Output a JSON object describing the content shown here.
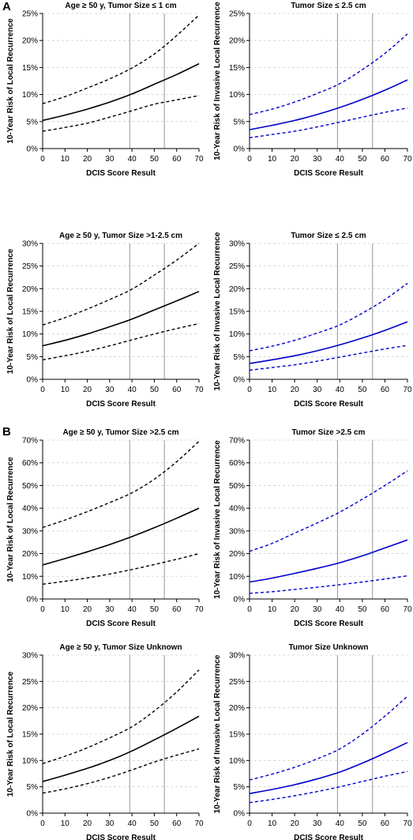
{
  "sections": [
    {
      "label": "A"
    },
    {
      "label": "B"
    }
  ],
  "chart_data": [
    {
      "type": "line",
      "title": "Age ≥ 50 y, Tumor Size ≤ 1 cm",
      "xlabel": "DCIS Score Result",
      "ylabel": "10-Year Risk of Local Recurrence",
      "xlim": [
        0,
        70
      ],
      "ylim": [
        0,
        25
      ],
      "xticks": [
        0,
        10,
        20,
        30,
        40,
        50,
        60,
        70
      ],
      "yticks": [
        0,
        5,
        10,
        15,
        20,
        25
      ],
      "ytick_format": "%",
      "vlines": [
        39,
        54.5
      ],
      "grid": "horizontal dashed",
      "color": "#000000",
      "x": [
        0,
        10,
        20,
        30,
        40,
        50,
        60,
        70
      ],
      "series": [
        {
          "role": "estimate",
          "style": "solid",
          "values": [
            5.2,
            6.2,
            7.3,
            8.6,
            10.1,
            11.9,
            13.7,
            15.7
          ]
        },
        {
          "role": "upper",
          "style": "dashed",
          "values": [
            8.3,
            9.6,
            11.2,
            12.9,
            14.9,
            17.5,
            20.9,
            24.7
          ]
        },
        {
          "role": "lower",
          "style": "dashed",
          "values": [
            3.2,
            3.9,
            4.7,
            5.8,
            7.0,
            8.2,
            9.0,
            9.8
          ]
        }
      ]
    },
    {
      "type": "line",
      "title": "Tumor Size ≤ 2.5 cm",
      "xlabel": "DCIS Score Result",
      "ylabel": "10-Year Risk of Invasive Local Recurrence",
      "xlim": [
        0,
        70
      ],
      "ylim": [
        0,
        25
      ],
      "xticks": [
        0,
        10,
        20,
        30,
        40,
        50,
        60,
        70
      ],
      "yticks": [
        0,
        5,
        10,
        15,
        20,
        25
      ],
      "ytick_format": "%",
      "vlines": [
        39,
        54.5
      ],
      "grid": "horizontal dashed",
      "color": "#0000cc",
      "x": [
        0,
        10,
        20,
        30,
        40,
        50,
        60,
        70
      ],
      "series": [
        {
          "role": "estimate",
          "style": "solid",
          "values": [
            3.5,
            4.3,
            5.2,
            6.3,
            7.6,
            9.1,
            10.8,
            12.7
          ]
        },
        {
          "role": "upper",
          "style": "dashed",
          "values": [
            6.3,
            7.3,
            8.6,
            10.2,
            12.0,
            14.6,
            17.6,
            21.2
          ]
        },
        {
          "role": "lower",
          "style": "dashed",
          "values": [
            2.0,
            2.6,
            3.2,
            4.0,
            4.9,
            5.8,
            6.7,
            7.5
          ]
        }
      ]
    },
    {
      "type": "line",
      "title": "Age ≥ 50 y, Tumor Size >1-2.5 cm",
      "xlabel": "DCIS Score Result",
      "ylabel": "10-Year Risk of Local Recurrence",
      "xlim": [
        0,
        70
      ],
      "ylim": [
        0,
        30
      ],
      "xticks": [
        0,
        10,
        20,
        30,
        40,
        50,
        60,
        70
      ],
      "yticks": [
        0,
        5,
        10,
        15,
        20,
        25,
        30
      ],
      "ytick_format": "%",
      "vlines": [
        39,
        54.5
      ],
      "grid": "horizontal dashed",
      "color": "#000000",
      "x": [
        0,
        10,
        20,
        30,
        40,
        50,
        60,
        70
      ],
      "series": [
        {
          "role": "estimate",
          "style": "solid",
          "values": [
            7.4,
            8.6,
            10.0,
            11.6,
            13.3,
            15.3,
            17.3,
            19.4
          ]
        },
        {
          "role": "upper",
          "style": "dashed",
          "values": [
            12.0,
            13.6,
            15.5,
            17.6,
            19.9,
            23.0,
            26.3,
            30.0
          ]
        },
        {
          "role": "lower",
          "style": "dashed",
          "values": [
            4.3,
            5.2,
            6.2,
            7.4,
            8.7,
            10.0,
            11.2,
            12.3
          ]
        }
      ]
    },
    {
      "type": "line",
      "title": "Tumor Size ≤ 2.5 cm",
      "xlabel": "DCIS Score Result",
      "ylabel": "10-Year Risk of Invasive Local Recurrence",
      "xlim": [
        0,
        70
      ],
      "ylim": [
        0,
        30
      ],
      "xticks": [
        0,
        10,
        20,
        30,
        40,
        50,
        60,
        70
      ],
      "yticks": [
        0,
        5,
        10,
        15,
        20,
        25,
        30
      ],
      "ytick_format": "%",
      "vlines": [
        39,
        54.5
      ],
      "grid": "horizontal dashed",
      "color": "#0000cc",
      "x": [
        0,
        10,
        20,
        30,
        40,
        50,
        60,
        70
      ],
      "series": [
        {
          "role": "estimate",
          "style": "solid",
          "values": [
            3.5,
            4.3,
            5.2,
            6.3,
            7.6,
            9.1,
            10.8,
            12.7
          ]
        },
        {
          "role": "upper",
          "style": "dashed",
          "values": [
            6.3,
            7.3,
            8.6,
            10.2,
            12.0,
            14.6,
            17.6,
            21.2
          ]
        },
        {
          "role": "lower",
          "style": "dashed",
          "values": [
            2.0,
            2.6,
            3.2,
            4.0,
            4.9,
            5.8,
            6.7,
            7.5
          ]
        }
      ]
    },
    {
      "type": "line",
      "title": "Age ≥ 50 y, Tumor Size >2.5 cm",
      "xlabel": "DCIS Score Result",
      "ylabel": "10-Year Risk of Local Recurrence",
      "xlim": [
        0,
        70
      ],
      "ylim": [
        0,
        70
      ],
      "xticks": [
        0,
        10,
        20,
        30,
        40,
        50,
        60,
        70
      ],
      "yticks": [
        0,
        10,
        20,
        30,
        40,
        50,
        60,
        70
      ],
      "ytick_format": "%",
      "vlines": [
        39,
        54.5
      ],
      "grid": "horizontal dashed",
      "color": "#000000",
      "x": [
        0,
        10,
        20,
        30,
        40,
        50,
        60,
        70
      ],
      "series": [
        {
          "role": "estimate",
          "style": "solid",
          "values": [
            15.0,
            17.8,
            20.8,
            24.0,
            27.5,
            31.4,
            35.6,
            40.0
          ]
        },
        {
          "role": "upper",
          "style": "dashed",
          "values": [
            31.5,
            34.8,
            38.5,
            42.5,
            46.8,
            52.8,
            60.5,
            69.5
          ]
        },
        {
          "role": "lower",
          "style": "dashed",
          "values": [
            6.5,
            7.8,
            9.3,
            11.0,
            13.0,
            15.2,
            17.5,
            20.0
          ]
        }
      ]
    },
    {
      "type": "line",
      "title": "Tumor Size >2.5 cm",
      "xlabel": "DCIS Score Result",
      "ylabel": "10-Year Risk of Invasive Local Recurrence",
      "xlim": [
        0,
        70
      ],
      "ylim": [
        0,
        70
      ],
      "xticks": [
        0,
        10,
        20,
        30,
        40,
        50,
        60,
        70
      ],
      "yticks": [
        0,
        10,
        20,
        30,
        40,
        50,
        60,
        70
      ],
      "ytick_format": "%",
      "vlines": [
        39,
        54.5
      ],
      "grid": "horizontal dashed",
      "color": "#0000cc",
      "x": [
        0,
        10,
        20,
        30,
        40,
        50,
        60,
        70
      ],
      "series": [
        {
          "role": "estimate",
          "style": "solid",
          "values": [
            7.5,
            9.2,
            11.3,
            13.5,
            16.0,
            19.0,
            22.5,
            26.0
          ]
        },
        {
          "role": "upper",
          "style": "dashed",
          "values": [
            21.0,
            24.5,
            29.0,
            33.5,
            38.3,
            44.0,
            50.0,
            56.5
          ]
        },
        {
          "role": "lower",
          "style": "dashed",
          "values": [
            2.5,
            3.2,
            4.2,
            5.2,
            6.3,
            7.5,
            8.8,
            10.2
          ]
        }
      ]
    },
    {
      "type": "line",
      "title": "Age ≥ 50 y, Tumor Size Unknown",
      "xlabel": "DCIS Score Result",
      "ylabel": "10-Year Risk of Local Recurrence",
      "xlim": [
        0,
        70
      ],
      "ylim": [
        0,
        30
      ],
      "xticks": [
        0,
        10,
        20,
        30,
        40,
        50,
        60,
        70
      ],
      "yticks": [
        0,
        5,
        10,
        15,
        20,
        25,
        30
      ],
      "ytick_format": "%",
      "vlines": [
        39,
        54.5
      ],
      "grid": "horizontal dashed",
      "color": "#000000",
      "x": [
        0,
        10,
        20,
        30,
        40,
        50,
        60,
        70
      ],
      "series": [
        {
          "role": "estimate",
          "style": "solid",
          "values": [
            6.0,
            7.2,
            8.5,
            10.0,
            11.8,
            13.9,
            16.1,
            18.4
          ]
        },
        {
          "role": "upper",
          "style": "dashed",
          "values": [
            9.4,
            10.8,
            12.4,
            14.3,
            16.4,
            19.4,
            23.0,
            27.2
          ]
        },
        {
          "role": "lower",
          "style": "dashed",
          "values": [
            3.8,
            4.6,
            5.6,
            6.8,
            8.2,
            9.7,
            11.0,
            12.2
          ]
        }
      ]
    },
    {
      "type": "line",
      "title": "Tumor Size Unknown",
      "xlabel": "DCIS Score Result",
      "ylabel": "10-Year Risk of Invasive Local Recurrence",
      "xlim": [
        0,
        70
      ],
      "ylim": [
        0,
        30
      ],
      "xticks": [
        0,
        10,
        20,
        30,
        40,
        50,
        60,
        70
      ],
      "yticks": [
        0,
        5,
        10,
        15,
        20,
        25,
        30
      ],
      "ytick_format": "%",
      "vlines": [
        39,
        54.5
      ],
      "grid": "horizontal dashed",
      "color": "#0000cc",
      "x": [
        0,
        10,
        20,
        30,
        40,
        50,
        60,
        70
      ],
      "series": [
        {
          "role": "estimate",
          "style": "solid",
          "values": [
            3.7,
            4.5,
            5.4,
            6.5,
            7.8,
            9.5,
            11.4,
            13.4
          ]
        },
        {
          "role": "upper",
          "style": "dashed",
          "values": [
            6.3,
            7.4,
            8.7,
            10.3,
            12.2,
            15.0,
            18.4,
            22.2
          ]
        },
        {
          "role": "lower",
          "style": "dashed",
          "values": [
            2.0,
            2.6,
            3.3,
            4.1,
            5.0,
            6.0,
            7.0,
            7.9
          ]
        }
      ]
    }
  ]
}
